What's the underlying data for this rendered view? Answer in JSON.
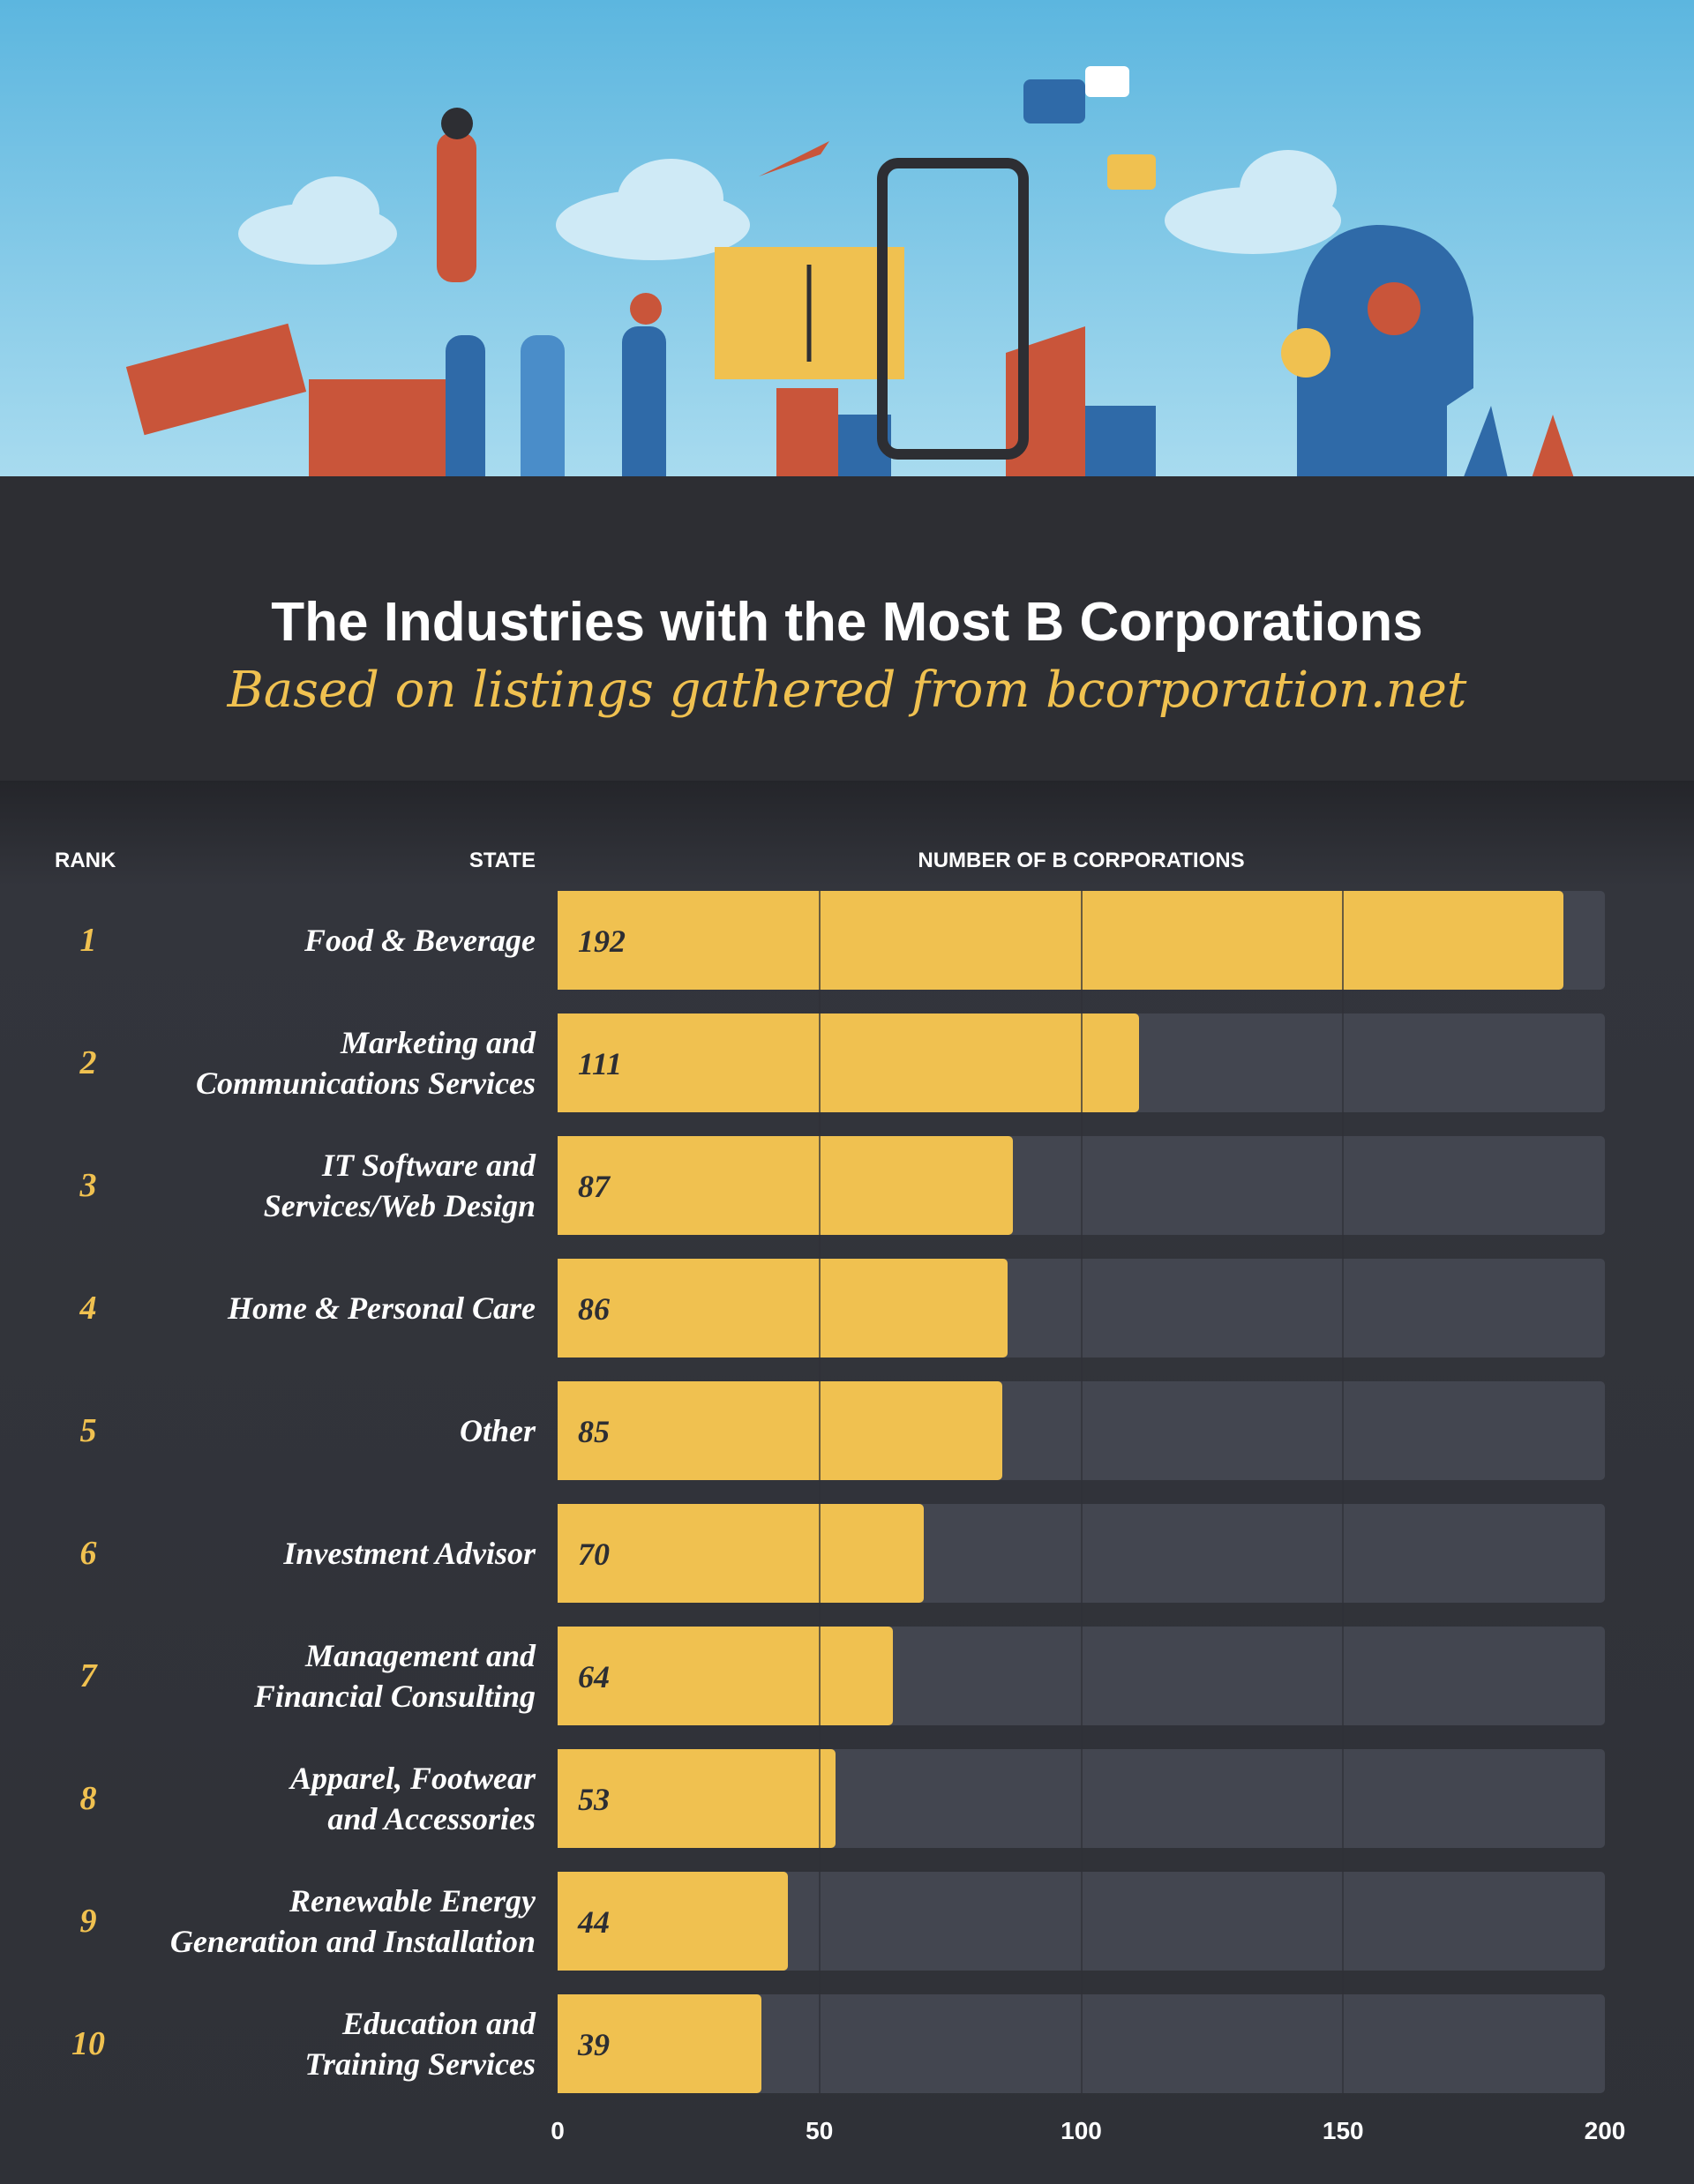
{
  "header": {
    "title": "The Industries with the Most B Corporations",
    "subtitle": "Based on listings gathered from bcorporation.net"
  },
  "columns": {
    "rank": "RANK",
    "state": "STATE",
    "number": "NUMBER OF B CORPORATIONS"
  },
  "colors": {
    "bar": "#f0c150",
    "track": "#434650",
    "background": "#2d2e33",
    "sky": "#5cb6df"
  },
  "chart_data": {
    "type": "bar",
    "orientation": "horizontal",
    "xlabel": "NUMBER OF B CORPORATIONS",
    "xlim": [
      0,
      200
    ],
    "xticks": [
      "0",
      "50",
      "100",
      "150",
      "200"
    ],
    "grid": true,
    "ranks": [
      "1",
      "2",
      "3",
      "4",
      "5",
      "6",
      "7",
      "8",
      "9",
      "10"
    ],
    "categories": [
      [
        "Food & Beverage"
      ],
      [
        "Marketing and",
        "Communications Services"
      ],
      [
        "IT Software and",
        "Services/Web Design"
      ],
      [
        "Home & Personal Care"
      ],
      [
        "Other"
      ],
      [
        "Investment Advisor"
      ],
      [
        "Management and",
        "Financial Consulting"
      ],
      [
        "Apparel, Footwear",
        "and Accessories"
      ],
      [
        "Renewable Energy",
        "Generation and Installation"
      ],
      [
        "Education and",
        "Training Services"
      ]
    ],
    "values": [
      192,
      111,
      87,
      86,
      85,
      70,
      64,
      53,
      44,
      39
    ]
  }
}
